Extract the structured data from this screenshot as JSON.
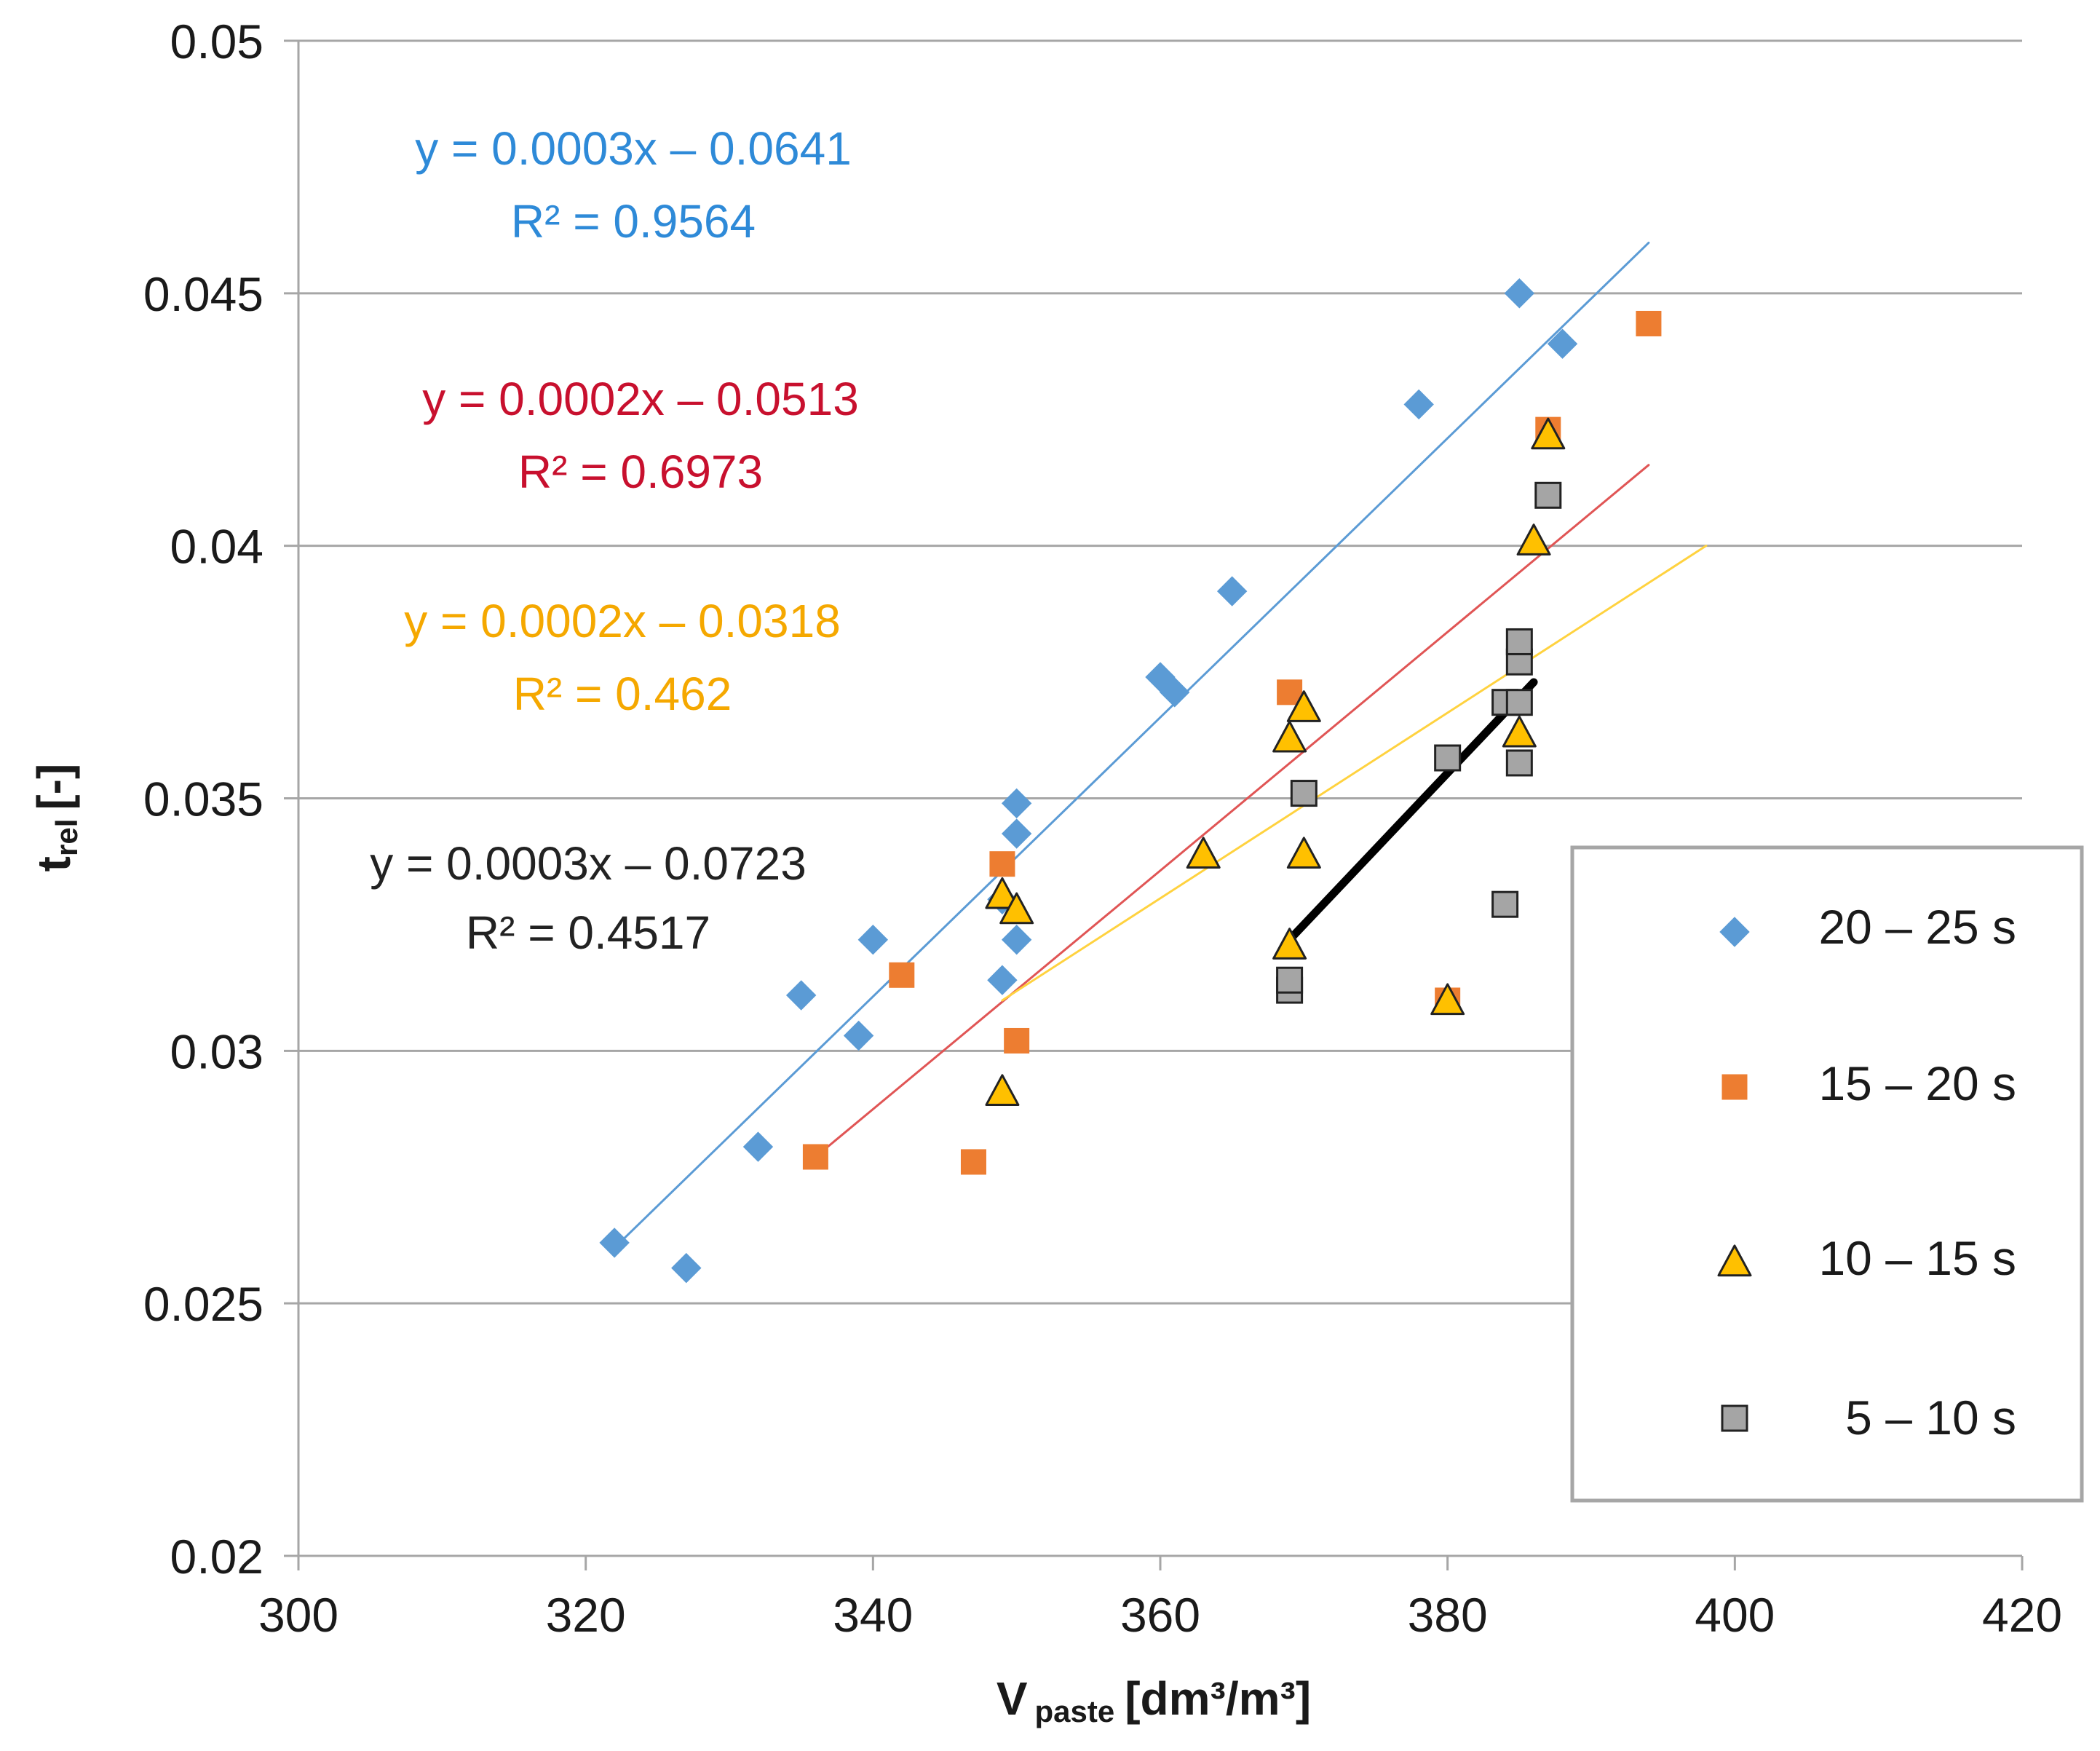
{
  "chart_data": {
    "type": "scatter",
    "xlabel": "V",
    "xlabel_sub": "paste",
    "xlabel_unit": "[dm³/m³]",
    "ylabel": "t",
    "ylabel_sub": "rel",
    "ylabel_unit": "[-]",
    "xlim": [
      300,
      420
    ],
    "ylim": [
      0.02,
      0.05
    ],
    "grid": "horizontal",
    "legend_position": "right",
    "x_ticks": [
      {
        "v": 300,
        "label": "300"
      },
      {
        "v": 320,
        "label": "320"
      },
      {
        "v": 340,
        "label": "340"
      },
      {
        "v": 360,
        "label": "360"
      },
      {
        "v": 380,
        "label": "380"
      },
      {
        "v": 400,
        "label": "400"
      },
      {
        "v": 420,
        "label": "420"
      }
    ],
    "y_ticks": [
      {
        "v": 0.02,
        "label": "0.02"
      },
      {
        "v": 0.025,
        "label": "0.025"
      },
      {
        "v": 0.03,
        "label": "0.03"
      },
      {
        "v": 0.035,
        "label": "0.035"
      },
      {
        "v": 0.04,
        "label": "0.04"
      },
      {
        "v": 0.045,
        "label": "0.045"
      },
      {
        "v": 0.05,
        "label": "0.05"
      }
    ],
    "series": [
      {
        "name": "20 – 25 s",
        "marker": "diamond",
        "color": "#5b9bd5",
        "edge": "#5b9bd5",
        "trend_color": "#5b9bd5",
        "trend_width": 3,
        "trend_x": [
          322,
          394
        ],
        "trend_y": [
          0.0261,
          0.046
        ],
        "equation": "y = 0.0003x – 0.0641",
        "r2": "R² = 0.9564",
        "label_color": "#2e8ad8",
        "points": [
          [
            322,
            0.0262
          ],
          [
            327,
            0.0257
          ],
          [
            332,
            0.0281
          ],
          [
            335,
            0.0311
          ],
          [
            339,
            0.0303
          ],
          [
            340,
            0.0322
          ],
          [
            349,
            0.0314
          ],
          [
            350,
            0.0322
          ],
          [
            349,
            0.033
          ],
          [
            350,
            0.0343
          ],
          [
            350,
            0.0349
          ],
          [
            360,
            0.0374
          ],
          [
            361,
            0.0371
          ],
          [
            365,
            0.0391
          ],
          [
            378,
            0.0428
          ],
          [
            385,
            0.045
          ],
          [
            388,
            0.044
          ]
        ]
      },
      {
        "name": "15 – 20 s",
        "marker": "square",
        "color": "#ed7d31",
        "edge": "#ed7d31",
        "trend_color": "#e05555",
        "trend_width": 3,
        "trend_x": [
          336,
          394
        ],
        "trend_y": [
          0.0279,
          0.0416
        ],
        "equation": "y = 0.0002x – 0.0513",
        "r2": "R² = 0.6973",
        "label_color": "#c8102e",
        "points": [
          [
            336,
            0.0279
          ],
          [
            342,
            0.0315
          ],
          [
            347,
            0.0278
          ],
          [
            349,
            0.0337
          ],
          [
            350,
            0.0302
          ],
          [
            369,
            0.0371
          ],
          [
            380,
            0.031
          ],
          [
            387,
            0.0423
          ],
          [
            394,
            0.0444
          ]
        ]
      },
      {
        "name": "10 – 15 s",
        "marker": "triangle",
        "color": "#ffc000",
        "edge": "#222222",
        "trend_color": "#ffd23f",
        "trend_width": 3,
        "trend_x": [
          349,
          398
        ],
        "trend_y": [
          0.031,
          0.04
        ],
        "equation": "y = 0.0002x – 0.0318",
        "r2": "R² = 0.462",
        "label_color": "#f5a800",
        "points": [
          [
            349,
            0.0292
          ],
          [
            349,
            0.0331
          ],
          [
            350,
            0.0328
          ],
          [
            363,
            0.0339
          ],
          [
            369,
            0.0362
          ],
          [
            369,
            0.0321
          ],
          [
            370,
            0.0368
          ],
          [
            370,
            0.0339
          ],
          [
            380,
            0.031
          ],
          [
            385,
            0.0363
          ],
          [
            386,
            0.0401
          ],
          [
            387,
            0.0422
          ]
        ]
      },
      {
        "name": "5 – 10 s",
        "marker": "square",
        "color": "#a5a5a5",
        "edge": "#222222",
        "trend_color": "#000000",
        "trend_width": 11,
        "trend_x": [
          369,
          386
        ],
        "trend_y": [
          0.0322,
          0.0373
        ],
        "equation": "y = 0.0003x – 0.0723",
        "r2": "R² = 0.4517",
        "label_color": "#222222",
        "points": [
          [
            369,
            0.0312
          ],
          [
            369,
            0.0314
          ],
          [
            370,
            0.0351
          ],
          [
            380,
            0.0358
          ],
          [
            384,
            0.0329
          ],
          [
            384,
            0.0369
          ],
          [
            385,
            0.0369
          ],
          [
            385,
            0.0357
          ],
          [
            385,
            0.0377
          ],
          [
            385,
            0.0381
          ],
          [
            387,
            0.041
          ]
        ]
      }
    ]
  }
}
